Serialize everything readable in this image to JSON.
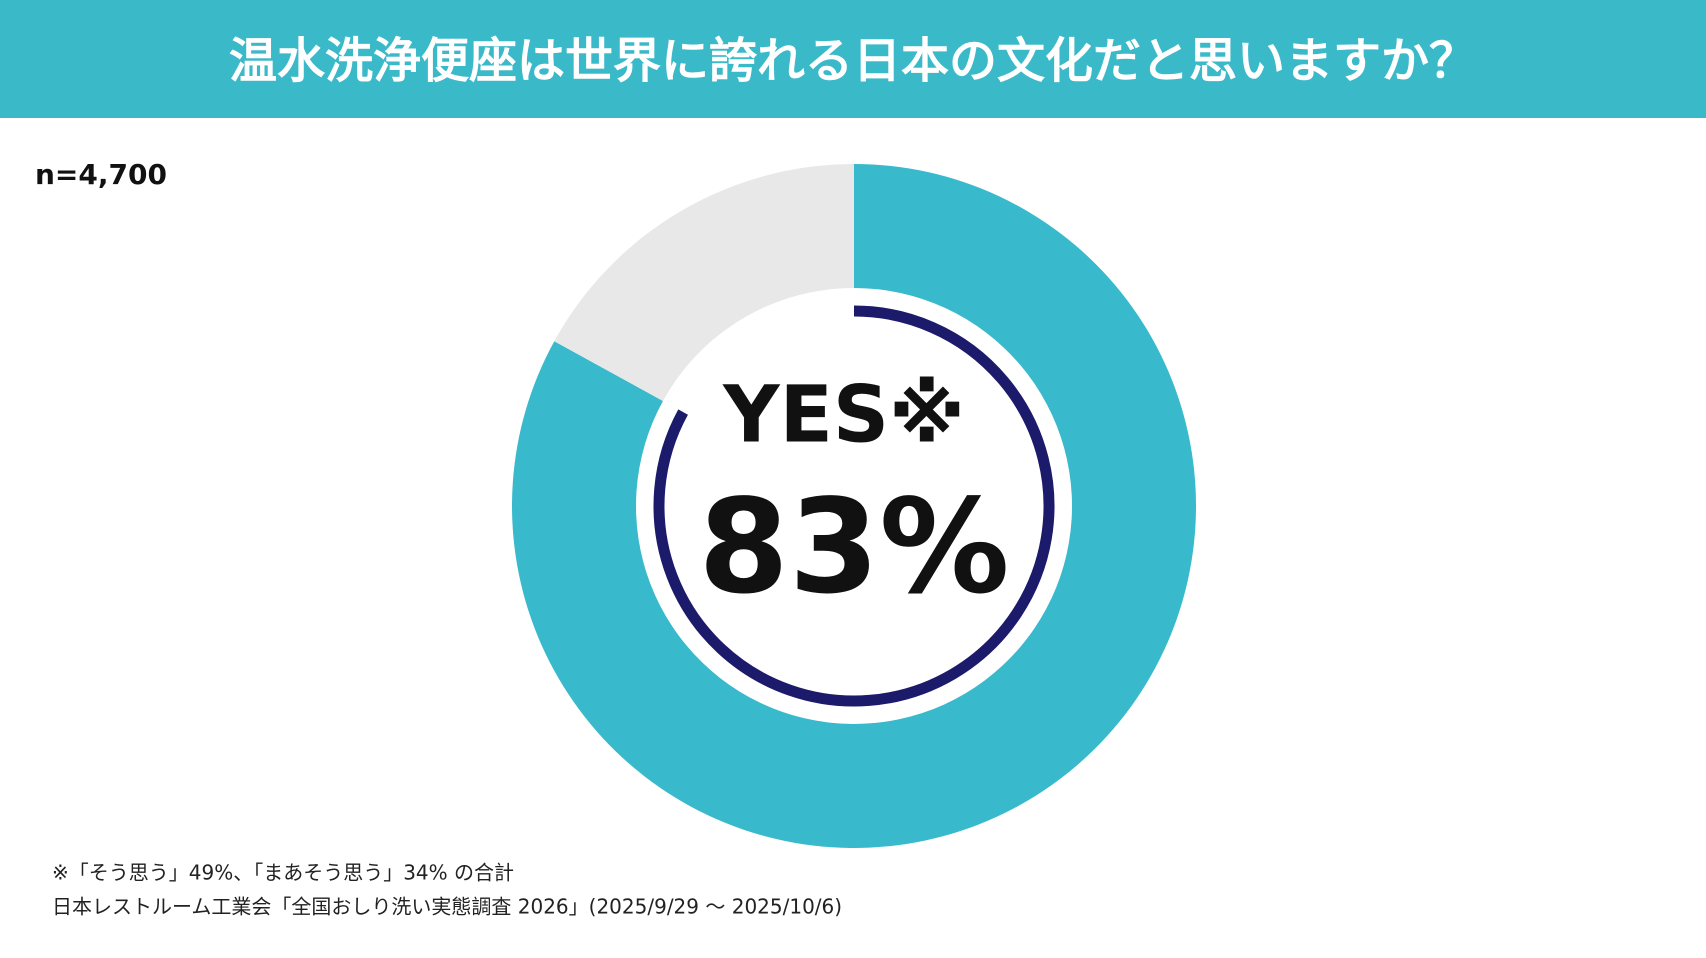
{
  "chart_data": {
    "type": "donut",
    "title": "温水洗浄便座は世界に誇れる日本の文化だと思いますか？",
    "sample_size": "n=4,700",
    "categories": [
      "YES※",
      null
    ],
    "values": [
      83,
      17
    ],
    "value_labels": [
      "83%",
      null
    ],
    "colors": [
      "#38b9cc",
      "#e8e8e8"
    ],
    "ring_color": "#1c1a6a",
    "header_color": "#3ab9c9",
    "footnotes": [
      "※「そう思う」49%、「まあそう思う」34% の合計",
      "日本レストルーム工業会「全国おしり洗い実態調査 2026」(2025/9/29 〜 2025/10/6)"
    ]
  }
}
